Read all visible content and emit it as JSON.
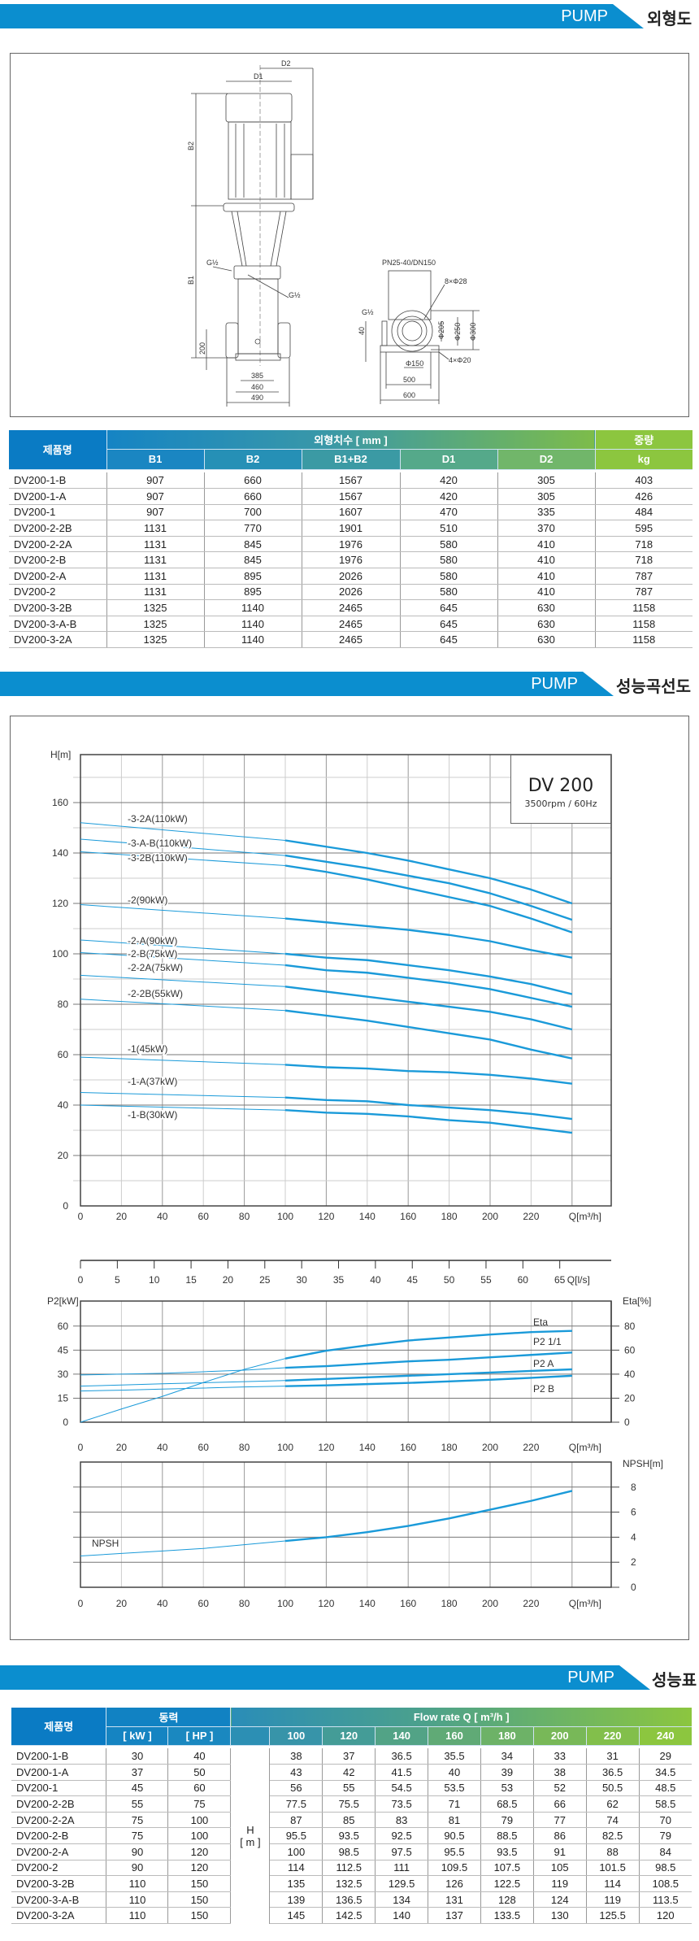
{
  "sections": [
    {
      "pump": "PUMP",
      "title": "외형도"
    },
    {
      "pump": "PUMP",
      "title": "성능곡선도"
    },
    {
      "pump": "PUMP",
      "title": "성능표"
    }
  ],
  "drawing": {
    "labels": {
      "d1": "D1",
      "d2": "D2",
      "b1": "B1",
      "b2": "B2",
      "g_left": "G½",
      "g_right": "G½",
      "h200": "200",
      "w385": "385",
      "w460": "460",
      "w490": "490",
      "flange": "PN25-40/DN150",
      "holes8": "8×Φ28",
      "g_side": "G½",
      "h40": "40",
      "d205": "Φ205",
      "d250": "Φ250",
      "d300": "Φ300",
      "holes4": "4×Φ20",
      "d150": "Φ150",
      "w500": "500",
      "w600": "600"
    }
  },
  "dimensions_table": {
    "header": {
      "name": "제품명",
      "group": "외형치수 [ mm ]",
      "weight": "중량",
      "cols": [
        "B1",
        "B2",
        "B1+B2",
        "D1",
        "D2"
      ],
      "weight_unit": "kg"
    },
    "rows": [
      [
        "DV200-1-B",
        "907",
        "660",
        "1567",
        "420",
        "305",
        "403"
      ],
      [
        "DV200-1-A",
        "907",
        "660",
        "1567",
        "420",
        "305",
        "426"
      ],
      [
        "DV200-1",
        "907",
        "700",
        "1607",
        "470",
        "335",
        "484"
      ],
      [
        "DV200-2-2B",
        "1131",
        "770",
        "1901",
        "510",
        "370",
        "595"
      ],
      [
        "DV200-2-2A",
        "1131",
        "845",
        "1976",
        "580",
        "410",
        "718"
      ],
      [
        "DV200-2-B",
        "1131",
        "845",
        "1976",
        "580",
        "410",
        "718"
      ],
      [
        "DV200-2-A",
        "1131",
        "895",
        "2026",
        "580",
        "410",
        "787"
      ],
      [
        "DV200-2",
        "1131",
        "895",
        "2026",
        "580",
        "410",
        "787"
      ],
      [
        "DV200-3-2B",
        "1325",
        "1140",
        "2465",
        "645",
        "630",
        "1158"
      ],
      [
        "DV200-3-A-B",
        "1325",
        "1140",
        "2465",
        "645",
        "630",
        "1158"
      ],
      [
        "DV200-3-2A",
        "1325",
        "1140",
        "2465",
        "645",
        "630",
        "1158"
      ]
    ]
  },
  "curve_box": {
    "model": "DV 200",
    "spec": "3500rpm / 60Hz"
  },
  "colors": {
    "brand_blue": "#0b8ecf",
    "header_blue": "#0a7bc4",
    "header_green": "#8cc63f",
    "curve": "#1a9ad9"
  },
  "chart_data": [
    {
      "type": "line",
      "ylabel": "H[m]",
      "xlabel": "Q[m³/h]",
      "xlim": [
        0,
        240
      ],
      "ylim": [
        0,
        180
      ],
      "x_ticks": [
        "0",
        "20",
        "40",
        "60",
        "80",
        "100",
        "120",
        "140",
        "160",
        "180",
        "200",
        "220"
      ],
      "y_ticks": [
        "0",
        "20",
        "40",
        "60",
        "80",
        "100",
        "120",
        "140",
        "160"
      ],
      "grid": true,
      "x": [
        0,
        100,
        120,
        140,
        160,
        180,
        200,
        220,
        240
      ],
      "series": [
        {
          "name": "-3-2A(110kW)",
          "values": [
            152,
            145,
            142.5,
            140,
            137,
            133.5,
            130,
            125.5,
            120
          ]
        },
        {
          "name": "-3-A-B(110kW)",
          "values": [
            145.5,
            139,
            136.5,
            134,
            131,
            128,
            124,
            119,
            113.5
          ]
        },
        {
          "name": "-3-2B(110kW)",
          "values": [
            140.5,
            135,
            132.5,
            129.5,
            126,
            122.5,
            119,
            114,
            108.5
          ]
        },
        {
          "name": "-2(90kW)",
          "values": [
            119.5,
            114,
            112.5,
            111,
            109.5,
            107.5,
            105,
            101.5,
            98.5
          ]
        },
        {
          "name": "-2-A(90kW)",
          "values": [
            105.5,
            100,
            98.5,
            97.5,
            95.5,
            93.5,
            91,
            88,
            84
          ]
        },
        {
          "name": "-2-B(75kW)",
          "values": [
            100.5,
            95.5,
            93.5,
            92.5,
            90.5,
            88.5,
            86,
            82.5,
            79
          ]
        },
        {
          "name": "-2-2A(75kW)",
          "values": [
            91.5,
            87,
            85,
            83,
            81,
            79,
            77,
            74,
            70
          ]
        },
        {
          "name": "-2-2B(55kW)",
          "values": [
            82,
            77.5,
            75.5,
            73.5,
            71,
            68.5,
            66,
            62,
            58.5
          ]
        },
        {
          "name": "-1(45kW)",
          "values": [
            59,
            56,
            55,
            54.5,
            53.5,
            53,
            52,
            50.5,
            48.5
          ]
        },
        {
          "name": "-1-A(37kW)",
          "values": [
            45,
            43,
            42,
            41.5,
            40,
            39,
            38,
            36.5,
            34.5
          ]
        },
        {
          "name": "-1-B(30kW)",
          "values": [
            40,
            38,
            37,
            36.5,
            35.5,
            34,
            33,
            31,
            29
          ]
        }
      ]
    },
    {
      "type": "line",
      "secondary_axis": {
        "label": "Q[l/s]",
        "ticks": [
          "0",
          "5",
          "10",
          "15",
          "20",
          "25",
          "30",
          "35",
          "40",
          "45",
          "50",
          "55",
          "60",
          "65"
        ]
      },
      "ylabel": "P2[kW]",
      "y2label": "Eta[%]",
      "xlabel": "Q[m³/h]",
      "xlim": [
        0,
        240
      ],
      "ylim": [
        0,
        70
      ],
      "y2lim": [
        0,
        93.3
      ],
      "x_ticks": [
        "0",
        "20",
        "40",
        "60",
        "80",
        "100",
        "120",
        "140",
        "160",
        "180",
        "200",
        "220"
      ],
      "y_ticks": [
        "0",
        "15",
        "30",
        "45",
        "60"
      ],
      "y2_ticks": [
        "0",
        "20",
        "40",
        "60",
        "80"
      ],
      "grid": true,
      "x": [
        0,
        20,
        40,
        60,
        80,
        100,
        120,
        140,
        160,
        180,
        200,
        220,
        240
      ],
      "series": [
        {
          "name": "Eta",
          "axis": "right",
          "values": [
            0,
            11,
            21.5,
            33,
            44,
            53,
            59.5,
            64,
            68,
            70.5,
            73,
            75,
            76
          ]
        },
        {
          "name": "P2 1/1",
          "axis": "left",
          "values": [
            29.5,
            30,
            30.5,
            31.5,
            32.5,
            34,
            35,
            36.5,
            38,
            39,
            40.5,
            42,
            43.5
          ]
        },
        {
          "name": "P2 A",
          "axis": "left",
          "values": [
            22.5,
            23.2,
            24,
            24.6,
            25.3,
            26,
            27,
            28,
            29,
            30,
            31,
            32,
            33
          ]
        },
        {
          "name": "P2 B",
          "axis": "left",
          "values": [
            19.5,
            20,
            20.7,
            21.3,
            22,
            22.5,
            23,
            23.8,
            24.5,
            25.5,
            26.5,
            27.7,
            29
          ]
        }
      ]
    },
    {
      "type": "line",
      "ylabel": "NPSH[m]",
      "xlabel": "Q[m³/h]",
      "xlim": [
        0,
        240
      ],
      "ylim": [
        0,
        9.5
      ],
      "x_ticks": [
        "0",
        "20",
        "40",
        "60",
        "80",
        "100",
        "120",
        "140",
        "160",
        "180",
        "200",
        "220"
      ],
      "y_ticks": [
        "0",
        "2",
        "4",
        "6",
        "8"
      ],
      "grid": true,
      "x": [
        0,
        20,
        40,
        60,
        80,
        100,
        120,
        140,
        160,
        180,
        200,
        220,
        240
      ],
      "series": [
        {
          "name": "NPSH",
          "values": [
            2.5,
            2.7,
            2.9,
            3.1,
            3.4,
            3.7,
            4.0,
            4.4,
            4.9,
            5.5,
            6.2,
            6.9,
            7.7
          ]
        }
      ]
    }
  ],
  "performance_table": {
    "header": {
      "name": "제품명",
      "power": "동력",
      "kw": "[ kW ]",
      "hp": "[ HP ]",
      "flow": "Flow rate Q [ m³/h ]",
      "q": [
        "100",
        "120",
        "140",
        "160",
        "180",
        "200",
        "220",
        "240"
      ],
      "h": "H",
      "h_unit": "[ m ]"
    },
    "rows": [
      [
        "DV200-1-B",
        "30",
        "40",
        "38",
        "37",
        "36.5",
        "35.5",
        "34",
        "33",
        "31",
        "29"
      ],
      [
        "DV200-1-A",
        "37",
        "50",
        "43",
        "42",
        "41.5",
        "40",
        "39",
        "38",
        "36.5",
        "34.5"
      ],
      [
        "DV200-1",
        "45",
        "60",
        "56",
        "55",
        "54.5",
        "53.5",
        "53",
        "52",
        "50.5",
        "48.5"
      ],
      [
        "DV200-2-2B",
        "55",
        "75",
        "77.5",
        "75.5",
        "73.5",
        "71",
        "68.5",
        "66",
        "62",
        "58.5"
      ],
      [
        "DV200-2-2A",
        "75",
        "100",
        "87",
        "85",
        "83",
        "81",
        "79",
        "77",
        "74",
        "70"
      ],
      [
        "DV200-2-B",
        "75",
        "100",
        "95.5",
        "93.5",
        "92.5",
        "90.5",
        "88.5",
        "86",
        "82.5",
        "79"
      ],
      [
        "DV200-2-A",
        "90",
        "120",
        "100",
        "98.5",
        "97.5",
        "95.5",
        "93.5",
        "91",
        "88",
        "84"
      ],
      [
        "DV200-2",
        "90",
        "120",
        "114",
        "112.5",
        "111",
        "109.5",
        "107.5",
        "105",
        "101.5",
        "98.5"
      ],
      [
        "DV200-3-2B",
        "110",
        "150",
        "135",
        "132.5",
        "129.5",
        "126",
        "122.5",
        "119",
        "114",
        "108.5"
      ],
      [
        "DV200-3-A-B",
        "110",
        "150",
        "139",
        "136.5",
        "134",
        "131",
        "128",
        "124",
        "119",
        "113.5"
      ],
      [
        "DV200-3-2A",
        "110",
        "150",
        "145",
        "142.5",
        "140",
        "137",
        "133.5",
        "130",
        "125.5",
        "120"
      ]
    ]
  }
}
